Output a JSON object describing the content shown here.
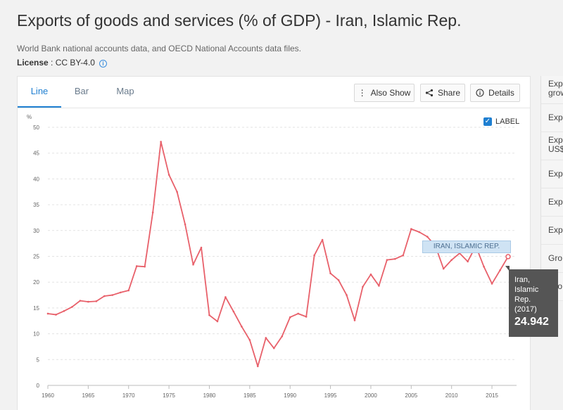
{
  "header": {
    "title": "Exports of goods and services (% of GDP) - Iran, Islamic Rep.",
    "source": "World Bank national accounts data, and OECD National Accounts data files.",
    "license_label": "License",
    "license_value": " : CC BY-4.0"
  },
  "tabs": [
    {
      "label": "Line"
    },
    {
      "label": "Bar"
    },
    {
      "label": "Map"
    }
  ],
  "toolbar": {
    "also_show": "Also Show",
    "share": "Share",
    "details": "Details"
  },
  "label_toggle": "LABEL",
  "right_list": [
    {
      "l1": "Exp",
      "l2": "grow"
    },
    {
      "l1": "Exp",
      "l2": ""
    },
    {
      "l1": "Exp",
      "l2": "US$"
    },
    {
      "l1": "Exp",
      "l2": ""
    },
    {
      "l1": "Exp",
      "l2": ""
    },
    {
      "l1": "Exp",
      "l2": ""
    },
    {
      "l1": "Gro",
      "l2": ""
    },
    {
      "l1": "Gro",
      "l2": ""
    }
  ],
  "tooltip": {
    "l1": "Iran,",
    "l2": "Islamic",
    "l3": "Rep.",
    "l4": "(2017)",
    "value": "24.942"
  },
  "series_tag": "IRAN, ISLAMIC REP.",
  "chart_data": {
    "type": "line",
    "ylabel": "%",
    "ylim": [
      0,
      50
    ],
    "xlim": [
      1960,
      2017
    ],
    "y_ticks": [
      0,
      5,
      10,
      15,
      20,
      25,
      30,
      35,
      40,
      45,
      50
    ],
    "x_ticks": [
      1960,
      1965,
      1970,
      1975,
      1980,
      1985,
      1990,
      1995,
      2000,
      2005,
      2010,
      2015
    ],
    "grid": true,
    "line_color": "#e8606a",
    "series": [
      {
        "name": "Iran, Islamic Rep.",
        "x": [
          1960,
          1961,
          1962,
          1963,
          1964,
          1965,
          1966,
          1967,
          1968,
          1969,
          1970,
          1971,
          1972,
          1973,
          1974,
          1975,
          1976,
          1977,
          1978,
          1979,
          1980,
          1981,
          1982,
          1983,
          1984,
          1985,
          1986,
          1987,
          1988,
          1989,
          1990,
          1991,
          1992,
          1993,
          1994,
          1995,
          1996,
          1997,
          1998,
          1999,
          2000,
          2001,
          2002,
          2003,
          2004,
          2005,
          2006,
          2007,
          2008,
          2009,
          2010,
          2011,
          2012,
          2013,
          2014,
          2015,
          2016,
          2017
        ],
        "values": [
          13.9,
          13.7,
          14.4,
          15.2,
          16.4,
          16.2,
          16.3,
          17.3,
          17.5,
          18.0,
          18.4,
          23.1,
          23.0,
          33.5,
          47.2,
          40.8,
          37.5,
          31.2,
          23.4,
          26.7,
          13.6,
          12.4,
          17.1,
          14.3,
          11.4,
          8.8,
          3.7,
          9.2,
          7.2,
          9.5,
          13.2,
          13.9,
          13.3,
          25.2,
          28.2,
          21.7,
          20.4,
          17.5,
          12.6,
          19.1,
          21.5,
          19.3,
          24.3,
          24.5,
          25.2,
          30.3,
          29.7,
          28.8,
          27.0,
          22.6,
          24.3,
          25.6,
          24.0,
          27.0,
          23.0,
          19.7,
          22.3,
          24.942
        ]
      }
    ]
  }
}
